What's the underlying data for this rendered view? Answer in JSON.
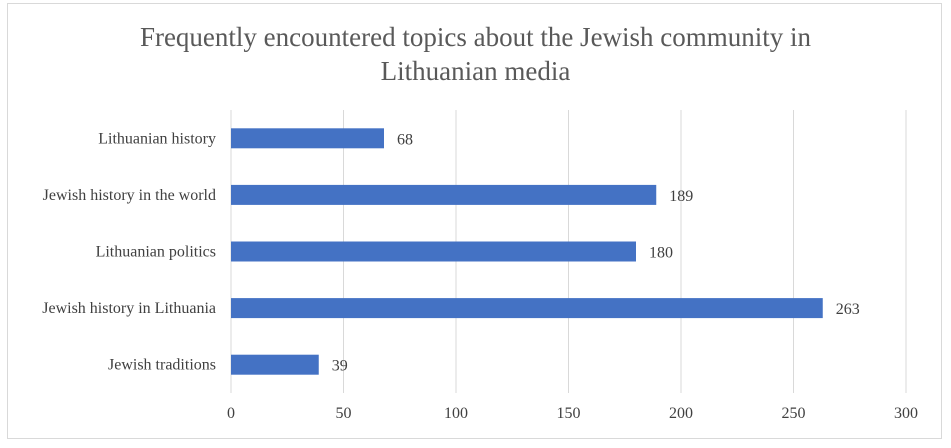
{
  "chart_data": {
    "type": "bar",
    "orientation": "horizontal",
    "title_lines": [
      "Frequently encountered topics about the Jewish community in",
      "Lithuanian media"
    ],
    "categories": [
      "Lithuanian history",
      "Jewish history in the world",
      "Lithuanian politics",
      "Jewish history in Lithuania",
      "Jewish traditions"
    ],
    "values": [
      68,
      189,
      180,
      263,
      39
    ],
    "xlim": [
      0,
      300
    ],
    "xticks": [
      0,
      50,
      100,
      150,
      200,
      250,
      300
    ],
    "grid": true,
    "legend": "none",
    "bar_color": "#4472C4"
  }
}
